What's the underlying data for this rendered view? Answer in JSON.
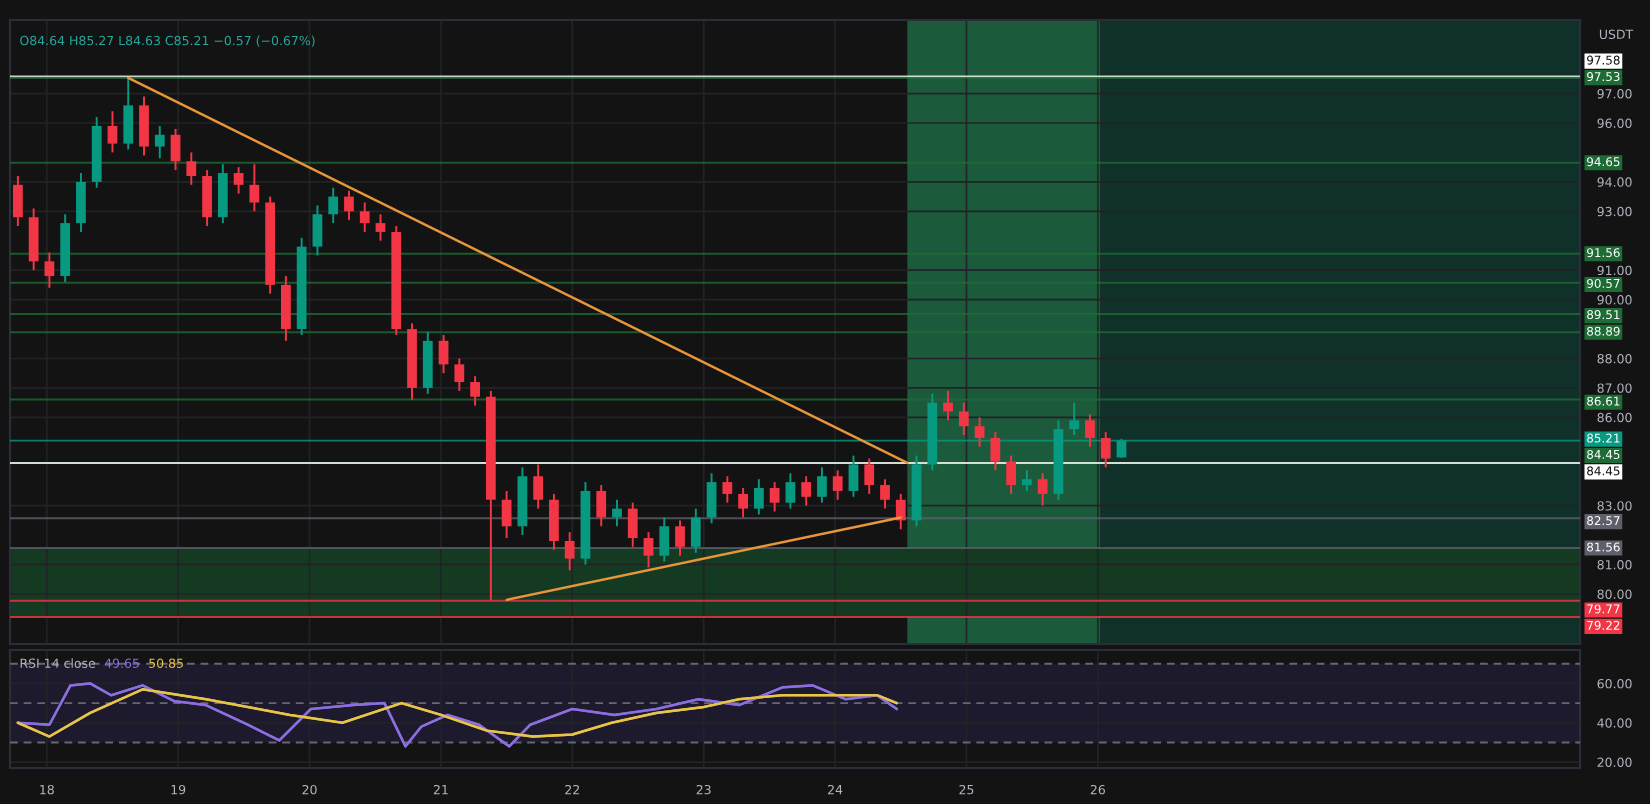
{
  "chart_data": [
    {
      "type": "candlestick",
      "ylabel": "USDT",
      "annotations": [
        "O84.64 H85.27 L84.63 C85.21 −0.57 (−0.67%)"
      ],
      "x": [
        17.78,
        17.9,
        18.02,
        18.14,
        18.26,
        18.38,
        18.5,
        18.62,
        18.74,
        18.86,
        18.98,
        19.1,
        19.22,
        19.34,
        19.46,
        19.58,
        19.7,
        19.82,
        19.94,
        20.06,
        20.18,
        20.3,
        20.42,
        20.54,
        20.66,
        20.78,
        20.9,
        21.02,
        21.14,
        21.26,
        21.38,
        21.5,
        21.62,
        21.74,
        21.86,
        21.98,
        22.1,
        22.22,
        22.34,
        22.46,
        22.58,
        22.7,
        22.82,
        22.94,
        23.06,
        23.18,
        23.3,
        23.42,
        23.54,
        23.66,
        23.78,
        23.9,
        24.02,
        24.14,
        24.26,
        24.38,
        24.5,
        24.62,
        24.74,
        24.86,
        24.98,
        25.1,
        25.22,
        25.34,
        25.46,
        25.58,
        25.7,
        25.82,
        25.94,
        26.06,
        26.18
      ],
      "ohlc": [
        [
          93.9,
          94.2,
          92.5,
          92.8
        ],
        [
          92.8,
          93.1,
          91.0,
          91.3
        ],
        [
          91.3,
          91.6,
          90.4,
          90.8
        ],
        [
          90.8,
          92.9,
          90.6,
          92.6
        ],
        [
          92.6,
          94.3,
          92.3,
          94.0
        ],
        [
          94.0,
          96.2,
          93.8,
          95.9
        ],
        [
          95.9,
          96.4,
          95.0,
          95.3
        ],
        [
          95.3,
          97.53,
          95.1,
          96.6
        ],
        [
          96.6,
          96.9,
          94.9,
          95.2
        ],
        [
          95.2,
          95.9,
          94.8,
          95.6
        ],
        [
          95.6,
          95.8,
          94.4,
          94.7
        ],
        [
          94.7,
          95.0,
          93.9,
          94.2
        ],
        [
          94.2,
          94.4,
          92.5,
          92.8
        ],
        [
          92.8,
          94.6,
          92.6,
          94.3
        ],
        [
          94.3,
          94.5,
          93.6,
          93.9
        ],
        [
          93.9,
          94.6,
          93.0,
          93.3
        ],
        [
          93.3,
          93.5,
          90.2,
          90.5
        ],
        [
          90.5,
          90.8,
          88.6,
          89.0
        ],
        [
          89.0,
          92.1,
          88.8,
          91.8
        ],
        [
          91.8,
          93.2,
          91.5,
          92.9
        ],
        [
          92.9,
          93.8,
          92.6,
          93.5
        ],
        [
          93.5,
          93.7,
          92.7,
          93.0
        ],
        [
          93.0,
          93.3,
          92.3,
          92.6
        ],
        [
          92.6,
          92.9,
          92.0,
          92.3
        ],
        [
          92.3,
          92.5,
          88.8,
          89.0
        ],
        [
          89.0,
          89.2,
          86.6,
          87.0
        ],
        [
          87.0,
          88.9,
          86.8,
          88.6
        ],
        [
          88.6,
          88.8,
          87.5,
          87.8
        ],
        [
          87.8,
          88.0,
          86.9,
          87.2
        ],
        [
          87.2,
          87.4,
          86.4,
          86.7
        ],
        [
          86.7,
          86.9,
          79.8,
          83.2
        ],
        [
          83.2,
          83.5,
          81.9,
          82.3
        ],
        [
          82.3,
          84.3,
          82.0,
          84.0
        ],
        [
          84.0,
          84.4,
          82.9,
          83.2
        ],
        [
          83.2,
          83.4,
          81.5,
          81.8
        ],
        [
          81.8,
          82.1,
          80.8,
          81.2
        ],
        [
          81.2,
          83.8,
          81.0,
          83.5
        ],
        [
          83.5,
          83.7,
          82.3,
          82.6
        ],
        [
          82.6,
          83.2,
          82.3,
          82.9
        ],
        [
          82.9,
          83.1,
          81.6,
          81.9
        ],
        [
          81.9,
          82.1,
          80.9,
          81.3
        ],
        [
          81.3,
          82.6,
          81.1,
          82.3
        ],
        [
          82.3,
          82.5,
          81.3,
          81.6
        ],
        [
          81.6,
          82.9,
          81.4,
          82.6
        ],
        [
          82.6,
          84.1,
          82.4,
          83.8
        ],
        [
          83.8,
          84.0,
          83.1,
          83.4
        ],
        [
          83.4,
          83.6,
          82.6,
          82.9
        ],
        [
          82.9,
          83.9,
          82.7,
          83.6
        ],
        [
          83.6,
          83.8,
          82.8,
          83.1
        ],
        [
          83.1,
          84.1,
          82.9,
          83.8
        ],
        [
          83.8,
          84.0,
          83.0,
          83.3
        ],
        [
          83.3,
          84.3,
          83.1,
          84.0
        ],
        [
          84.0,
          84.2,
          83.2,
          83.5
        ],
        [
          83.5,
          84.7,
          83.3,
          84.4
        ],
        [
          84.4,
          84.6,
          83.4,
          83.7
        ],
        [
          83.7,
          83.9,
          82.9,
          83.2
        ],
        [
          83.2,
          83.4,
          82.2,
          82.5
        ],
        [
          82.5,
          84.7,
          82.3,
          84.4
        ],
        [
          84.4,
          86.8,
          84.2,
          86.5
        ],
        [
          86.5,
          86.9,
          85.9,
          86.2
        ],
        [
          86.2,
          86.5,
          85.4,
          85.7
        ],
        [
          85.7,
          86.0,
          85.0,
          85.3
        ],
        [
          85.3,
          85.5,
          84.2,
          84.5
        ],
        [
          84.5,
          84.7,
          83.4,
          83.7
        ],
        [
          83.7,
          84.2,
          83.5,
          83.9
        ],
        [
          83.9,
          84.1,
          83.0,
          83.4
        ],
        [
          83.4,
          85.9,
          83.2,
          85.6
        ],
        [
          85.6,
          86.5,
          85.4,
          85.9
        ],
        [
          85.9,
          86.1,
          85.0,
          85.3
        ],
        [
          85.3,
          85.5,
          84.3,
          84.6
        ],
        [
          84.64,
          85.27,
          84.63,
          85.21
        ]
      ],
      "series": [
        {
          "type": "line",
          "color": "#e8963a",
          "x": [
            18.62,
            24.55
          ],
          "values": [
            97.53,
            84.45
          ]
        },
        {
          "type": "line",
          "color": "#e8963a",
          "x": [
            21.5,
            24.5
          ],
          "values": [
            79.8,
            82.6
          ]
        }
      ],
      "bands": [
        {
          "axis": "x",
          "from": 24.55,
          "to": 26.02,
          "color": "#1c5a3c"
        },
        {
          "axis": "x",
          "from": 26.02,
          "to": 29.67,
          "color": "#10302a"
        },
        {
          "axis": "y",
          "from": 79.22,
          "to": 81.56,
          "color": "#153a22"
        }
      ],
      "ref_lines": [
        {
          "axis": "y",
          "value": 97.58,
          "label": "97.58",
          "color": "#ffffff"
        },
        {
          "axis": "y",
          "value": 97.53,
          "label": "97.53",
          "color": "#1e6b35"
        },
        {
          "axis": "y",
          "value": 94.65,
          "label": "94.65",
          "color": "#1e6b35"
        },
        {
          "axis": "y",
          "value": 91.56,
          "label": "91.56",
          "color": "#1e6b35"
        },
        {
          "axis": "y",
          "value": 90.57,
          "label": "90.57",
          "color": "#1e6b35"
        },
        {
          "axis": "y",
          "value": 89.51,
          "label": "89.51",
          "color": "#1e6b35"
        },
        {
          "axis": "y",
          "value": 88.89,
          "label": "88.89",
          "color": "#1e6b35"
        },
        {
          "axis": "y",
          "value": 86.61,
          "label": "86.61",
          "color": "#1e6b35"
        },
        {
          "axis": "y",
          "value": 85.21,
          "label": "85.21",
          "color": "#089981"
        },
        {
          "axis": "y",
          "value": 84.45,
          "label": "84.45",
          "color": "#1e6b35"
        },
        {
          "axis": "y",
          "value": 84.45,
          "label": "84.45",
          "color": "#ffffff"
        },
        {
          "axis": "y",
          "value": 82.57,
          "label": "82.57",
          "color": "#5d606b"
        },
        {
          "axis": "y",
          "value": 81.56,
          "label": "81.56",
          "color": "#5d606b"
        },
        {
          "axis": "y",
          "value": 79.77,
          "label": "79.77",
          "color": "#f23645"
        },
        {
          "axis": "y",
          "value": 79.22,
          "label": "79.22",
          "color": "#f23645"
        }
      ],
      "xlim": [
        17.72,
        29.67
      ],
      "xticks": [
        18,
        19,
        20,
        21,
        22,
        23,
        24,
        25,
        26
      ],
      "ylim": [
        78.3,
        99.5
      ],
      "yticks": [
        {
          "value": 97,
          "label": "97.00"
        },
        {
          "value": 96,
          "label": "96.00"
        },
        {
          "value": 94,
          "label": "94.00"
        },
        {
          "value": 93,
          "label": "93.00"
        },
        {
          "value": 91,
          "label": "91.00"
        },
        {
          "value": 90,
          "label": "90.00"
        },
        {
          "value": 88,
          "label": "88.00"
        },
        {
          "value": 87,
          "label": "87.00"
        },
        {
          "value": 86,
          "label": "86.00"
        },
        {
          "value": 83,
          "label": "83.00"
        },
        {
          "value": 81,
          "label": "81.00"
        },
        {
          "value": 80,
          "label": "80.00"
        }
      ],
      "grid": true,
      "tick_labels": "y"
    },
    {
      "type": "line",
      "annotations": [
        "RSI 14 close",
        "49.65",
        "50.85"
      ],
      "series": [
        {
          "color": "#8c6ee0",
          "x": [
            17.78,
            18.02,
            18.18,
            18.33,
            18.49,
            18.73,
            18.97,
            19.21,
            19.53,
            19.77,
            20.01,
            20.33,
            20.57,
            20.73,
            20.85,
            21.05,
            21.29,
            21.52,
            21.68,
            22.0,
            22.32,
            22.64,
            22.96,
            23.27,
            23.6,
            23.83,
            24.08,
            24.32,
            24.47
          ],
          "values": [
            40,
            39,
            59,
            60,
            54,
            59,
            51,
            49,
            39,
            31,
            47,
            49,
            50,
            28,
            38,
            44,
            39,
            28,
            39,
            47,
            44,
            47,
            52,
            49,
            58,
            59,
            52,
            54,
            47
          ]
        },
        {
          "color": "#e8c547",
          "x": [
            17.78,
            18.02,
            18.33,
            18.73,
            19.21,
            19.85,
            20.25,
            20.7,
            21.0,
            21.35,
            21.7,
            22.0,
            22.3,
            22.64,
            23.0,
            23.27,
            23.6,
            24.0,
            24.32,
            24.47
          ],
          "values": [
            40,
            33,
            45,
            57,
            52,
            44,
            40,
            50,
            44,
            36,
            33,
            34,
            40,
            45,
            48,
            52,
            54,
            54,
            54,
            50
          ]
        }
      ],
      "ref_lines": [
        {
          "axis": "y",
          "value": 70,
          "color": "#787b86",
          "line_style": "dashed"
        },
        {
          "axis": "y",
          "value": 50,
          "color": "#787b86",
          "line_style": "dashed"
        },
        {
          "axis": "y",
          "value": 30,
          "color": "#787b86",
          "line_style": "dashed"
        }
      ],
      "bands": [
        {
          "axis": "y",
          "from": 30,
          "to": 70,
          "color": "#1e1a2e"
        }
      ],
      "xlim": [
        17.72,
        29.67
      ],
      "xticks": [
        18,
        19,
        20,
        21,
        22,
        23,
        24,
        25,
        26
      ],
      "ylim": [
        17,
        77
      ],
      "yticks": [
        {
          "value": 20,
          "label": "20.00"
        },
        {
          "value": 40,
          "label": "40.00"
        },
        {
          "value": 60,
          "label": "60.00"
        }
      ],
      "grid": true
    }
  ]
}
